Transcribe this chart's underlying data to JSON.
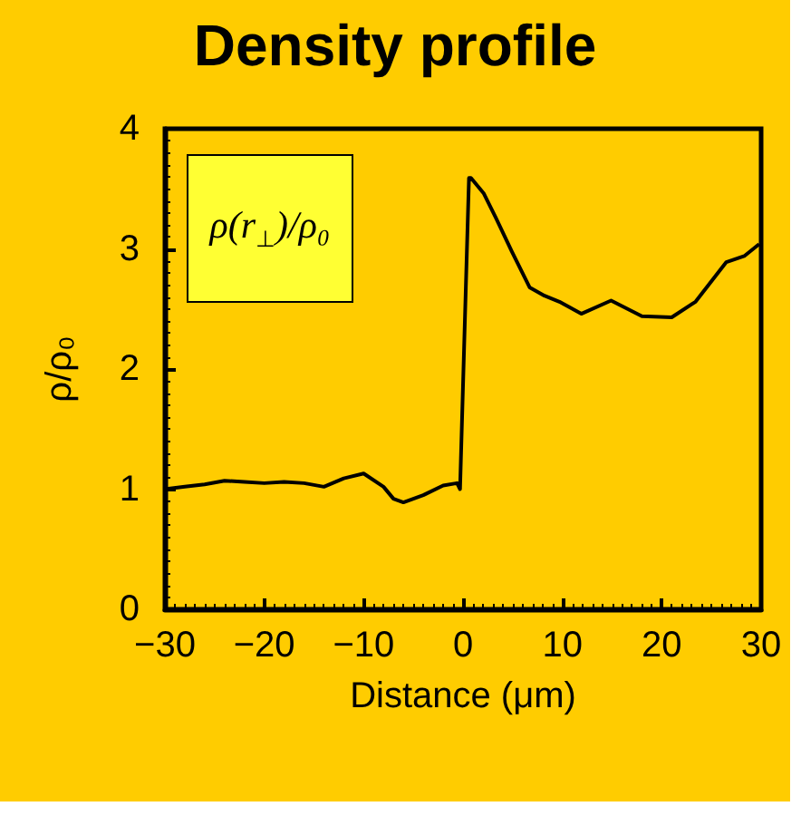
{
  "chart_data": {
    "type": "line",
    "title": "Density profile",
    "xlabel": "Distance (μm)",
    "ylabel": "ρ/ρ₀",
    "annotations": [
      "ρ(r$_{⊥}$)/ρ₀"
    ],
    "x": [
      -30,
      -28,
      -26,
      -24,
      -22,
      -20,
      -18,
      -16,
      -14,
      -12,
      -10,
      -8,
      -7,
      -6,
      -4,
      -2,
      -0.6,
      -0.3,
      0.6,
      0.8,
      2.1,
      3.3,
      4.9,
      6.7,
      8.2,
      9.7,
      11.9,
      14.9,
      18,
      21,
      23.4,
      26.5,
      28.3,
      29.8
    ],
    "series": [
      {
        "color": "#000000",
        "values": [
          1.0,
          1.02,
          1.04,
          1.07,
          1.06,
          1.05,
          1.06,
          1.05,
          1.02,
          1.09,
          1.13,
          1.02,
          0.92,
          0.89,
          0.95,
          1.03,
          1.05,
          1.0,
          3.59,
          3.59,
          3.46,
          3.26,
          2.98,
          2.68,
          2.61,
          2.56,
          2.46,
          2.57,
          2.44,
          2.43,
          2.56,
          2.89,
          2.94,
          3.04
        ]
      }
    ],
    "xlim": [
      -30,
      30
    ],
    "xticks": [
      -30,
      -20,
      -10,
      0,
      10,
      20,
      30
    ],
    "ylim": [
      0,
      4
    ],
    "yticks": [
      0,
      1,
      2,
      3,
      4
    ],
    "grid": false,
    "marker": "none",
    "line_style": "solid"
  }
}
